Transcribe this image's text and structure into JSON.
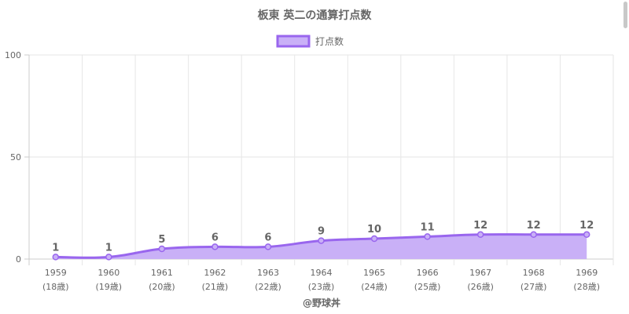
{
  "chart_data": {
    "type": "line",
    "title": "板東 英二の通算打点数",
    "series": [
      {
        "name": "打点数",
        "values": [
          1,
          1,
          5,
          6,
          6,
          9,
          10,
          11,
          12,
          12,
          12
        ]
      }
    ],
    "categories": [
      "1959",
      "1960",
      "1961",
      "1962",
      "1963",
      "1964",
      "1965",
      "1966",
      "1967",
      "1968",
      "1969"
    ],
    "category_sublabels": [
      "(18歳)",
      "(19歳)",
      "(20歳)",
      "(21歳)",
      "(22歳)",
      "(23歳)",
      "(24歳)",
      "(25歳)",
      "(26歳)",
      "(27歳)",
      "(28歳)"
    ],
    "ylim": [
      0,
      100
    ],
    "yticks": [
      0,
      50,
      100
    ],
    "grid": true,
    "fill_area": true,
    "legend_position": "top",
    "data_labels": true,
    "credit": "@野球丼",
    "colors": {
      "line": "#9966ee",
      "fill": "#c9b0f7",
      "grid": "#e6e6e6",
      "text": "#666666"
    }
  }
}
